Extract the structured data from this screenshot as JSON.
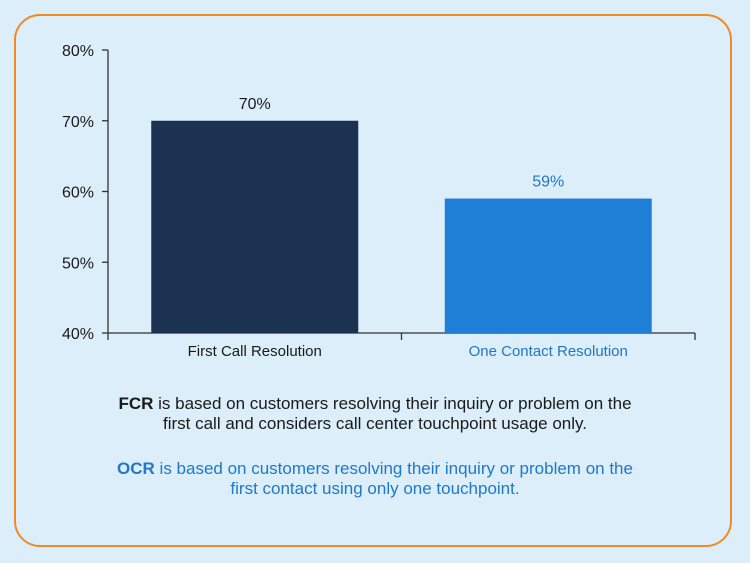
{
  "chart_data": {
    "type": "bar",
    "categories": [
      "First Call Resolution",
      "One Contact Resolution"
    ],
    "values": [
      70,
      59
    ],
    "value_labels": [
      "70%",
      "59%"
    ],
    "bar_colors": [
      "#1b3350",
      "#1f7fd6"
    ],
    "category_label_colors": [
      "#1a1a1a",
      "#2276c4"
    ],
    "value_label_colors": [
      "#1a1a1a",
      "#2276c4"
    ],
    "ylim": [
      40,
      80
    ],
    "yticks": [
      40,
      50,
      60,
      70,
      80
    ],
    "ytick_labels": [
      "40%",
      "50%",
      "60%",
      "70%",
      "80%"
    ],
    "title": "",
    "xlabel": "",
    "ylabel": "",
    "grid": false
  },
  "notes": {
    "fcr": {
      "abbr": "FCR",
      "line1": " is based on customers resolving their inquiry or problem on the",
      "line2": "first call and considers call center touchpoint usage only."
    },
    "ocr": {
      "abbr": "OCR",
      "line1": " is based on customers resolving their inquiry or problem on the",
      "line2": "first contact using only one touchpoint."
    }
  },
  "colors": {
    "background": "#dbeef9",
    "border": "#f08a24",
    "ocr_text": "#1f78c8"
  }
}
